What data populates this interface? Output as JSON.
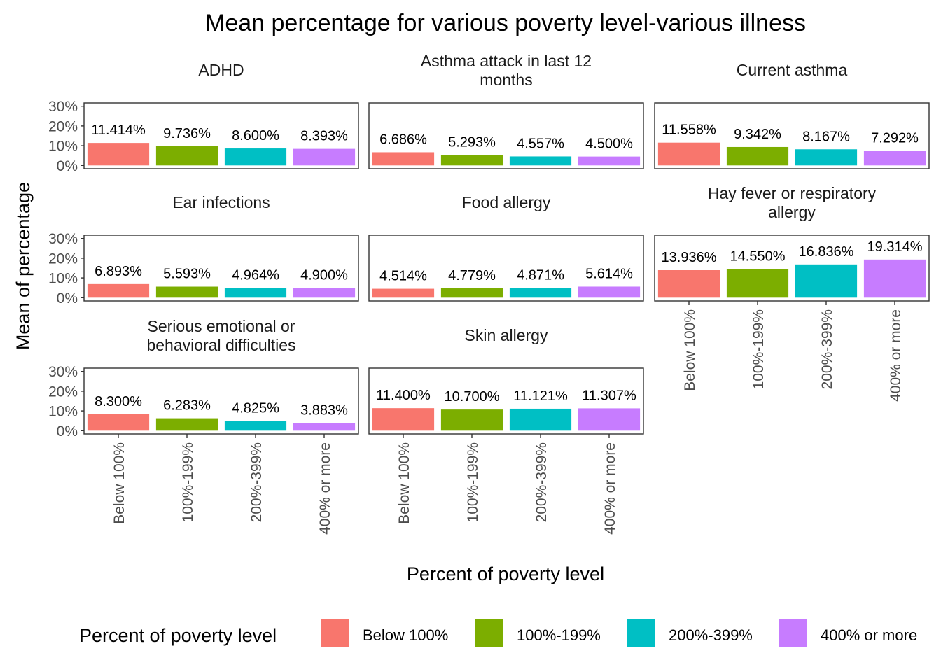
{
  "chart_data": {
    "type": "bar",
    "title": "Mean percentage for various poverty level-various illness",
    "xlabel": "Percent of poverty level",
    "ylabel": "Mean of percentage",
    "ylim": [
      0,
      30
    ],
    "y_ticks": [
      "0%",
      "10%",
      "20%",
      "30%"
    ],
    "categories": [
      "Below 100%",
      "100%-199%",
      "200%-399%",
      "400% or more"
    ],
    "colors": [
      "#F8766D",
      "#7CAE00",
      "#00BFC4",
      "#C77CFF"
    ],
    "legend": {
      "title": "Percent of poverty level",
      "position": "bottom",
      "entries": [
        "Below 100%",
        "100%-199%",
        "200%-399%",
        "400% or more"
      ]
    },
    "facets": [
      {
        "name": "ADHD",
        "values": [
          11.414,
          9.736,
          8.6,
          8.393
        ],
        "labels": [
          "11.414%",
          "9.736%",
          "8.600%",
          "8.393%"
        ]
      },
      {
        "name": "Asthma attack in last 12 months",
        "title_lines": [
          "Asthma attack in last 12",
          "months"
        ],
        "values": [
          6.686,
          5.293,
          4.557,
          4.5
        ],
        "labels": [
          "6.686%",
          "5.293%",
          "4.557%",
          "4.500%"
        ]
      },
      {
        "name": "Current asthma",
        "values": [
          11.558,
          9.342,
          8.167,
          7.292
        ],
        "labels": [
          "11.558%",
          "9.342%",
          "8.167%",
          "7.292%"
        ]
      },
      {
        "name": "Ear infections",
        "values": [
          6.893,
          5.593,
          4.964,
          4.9
        ],
        "labels": [
          "6.893%",
          "5.593%",
          "4.964%",
          "4.900%"
        ]
      },
      {
        "name": "Food allergy",
        "values": [
          4.514,
          4.779,
          4.871,
          5.614
        ],
        "labels": [
          "4.514%",
          "4.779%",
          "4.871%",
          "5.614%"
        ]
      },
      {
        "name": "Hay fever or respiratory allergy",
        "title_lines": [
          "Hay fever or respiratory",
          "allergy"
        ],
        "values": [
          13.936,
          14.55,
          16.836,
          19.314
        ],
        "labels": [
          "13.936%",
          "14.550%",
          "16.836%",
          "19.314%"
        ]
      },
      {
        "name": "Serious emotional or behavioral difficulties",
        "title_lines": [
          "Serious emotional or",
          "behavioral difficulties"
        ],
        "values": [
          8.3,
          6.283,
          4.825,
          3.883
        ],
        "labels": [
          "8.300%",
          "6.283%",
          "4.825%",
          "3.883%"
        ]
      },
      {
        "name": "Skin allergy",
        "values": [
          11.4,
          10.7,
          11.121,
          11.307
        ],
        "labels": [
          "11.400%",
          "10.700%",
          "11.121%",
          "11.307%"
        ]
      }
    ]
  }
}
